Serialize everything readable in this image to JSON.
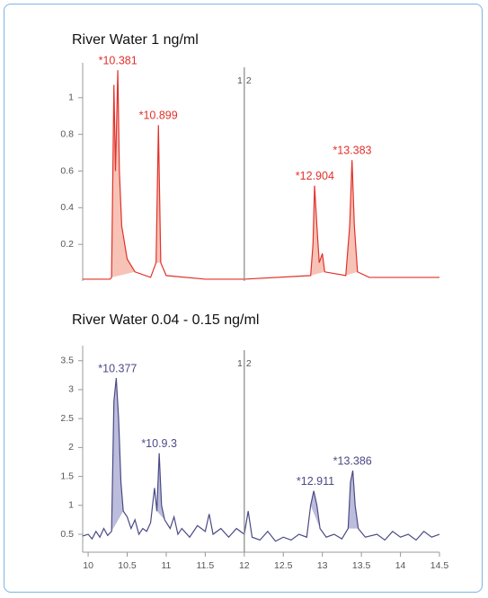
{
  "chart_data": [
    {
      "type": "line",
      "title": "River Water   1 ng/ml",
      "xlim": [
        9.93,
        14.5
      ],
      "ylim": [
        0,
        1.19
      ],
      "yticks": [
        0.2,
        0.4,
        0.6,
        0.8,
        1
      ],
      "divider": 12,
      "divider_labels": [
        "1",
        "2"
      ],
      "series": [
        {
          "color": "#e2312b",
          "fill": "#f6c3b6",
          "x": [
            9.93,
            10.28,
            10.3,
            10.33,
            10.35,
            10.38,
            10.4,
            10.43,
            10.5,
            10.6,
            10.8,
            10.87,
            10.9,
            10.93,
            11.0,
            11.5,
            12.0,
            12.85,
            12.88,
            12.9,
            12.93,
            12.96,
            13.0,
            13.03,
            13.3,
            13.35,
            13.38,
            13.41,
            13.45,
            13.6,
            14.5
          ],
          "values": [
            0.01,
            0.01,
            0.02,
            1.07,
            0.6,
            1.15,
            0.6,
            0.3,
            0.12,
            0.05,
            0.02,
            0.1,
            0.85,
            0.1,
            0.03,
            0.01,
            0.01,
            0.03,
            0.2,
            0.52,
            0.3,
            0.1,
            0.15,
            0.05,
            0.03,
            0.3,
            0.66,
            0.3,
            0.05,
            0.02,
            0.02
          ]
        }
      ],
      "shade": [
        [
          10.3,
          10.6
        ],
        [
          10.87,
          10.93
        ],
        [
          12.85,
          13.03
        ],
        [
          13.3,
          13.45
        ]
      ],
      "annotations": [
        {
          "text": "*10.381",
          "x": 10.381
        },
        {
          "text": "*10.899",
          "x": 10.899
        },
        {
          "text": "*12.904",
          "x": 12.904
        },
        {
          "text": "*13.383",
          "x": 13.383
        }
      ]
    },
    {
      "type": "line",
      "title": "River Water   0.04 - 0.15 ng/ml",
      "xlim": [
        9.93,
        14.5
      ],
      "ylim": [
        0.19,
        3.76
      ],
      "yticks": [
        0.5,
        1,
        1.5,
        2,
        2.5,
        3,
        3.5
      ],
      "xticks": [
        10,
        10.5,
        11,
        11.5,
        12,
        12.5,
        13,
        13.5,
        14,
        14.5
      ],
      "divider": 12,
      "divider_labels": [
        "1",
        "2"
      ],
      "series": [
        {
          "color": "#4b4a86",
          "fill": "#bcbcdc",
          "x": [
            9.93,
            10.0,
            10.05,
            10.1,
            10.15,
            10.2,
            10.25,
            10.3,
            10.33,
            10.36,
            10.39,
            10.42,
            10.45,
            10.5,
            10.55,
            10.6,
            10.65,
            10.7,
            10.75,
            10.8,
            10.85,
            10.88,
            10.91,
            10.94,
            10.98,
            11.05,
            11.1,
            11.15,
            11.2,
            11.3,
            11.4,
            11.5,
            11.55,
            11.6,
            11.7,
            11.8,
            11.9,
            12.0,
            12.05,
            12.1,
            12.2,
            12.3,
            12.4,
            12.5,
            12.6,
            12.7,
            12.8,
            12.85,
            12.89,
            12.93,
            12.97,
            13.05,
            13.15,
            13.25,
            13.33,
            13.36,
            13.39,
            13.42,
            13.46,
            13.55,
            13.7,
            13.8,
            13.9,
            14.0,
            14.1,
            14.2,
            14.3,
            14.4,
            14.5
          ],
          "values": [
            0.47,
            0.5,
            0.42,
            0.55,
            0.45,
            0.6,
            0.48,
            0.55,
            2.8,
            3.2,
            2.5,
            1.4,
            0.9,
            0.8,
            0.6,
            0.75,
            0.5,
            0.6,
            0.55,
            0.7,
            1.3,
            0.9,
            1.9,
            1.0,
            0.75,
            0.6,
            0.8,
            0.5,
            0.6,
            0.45,
            0.65,
            0.55,
            0.85,
            0.5,
            0.6,
            0.45,
            0.6,
            0.5,
            0.9,
            0.45,
            0.4,
            0.55,
            0.38,
            0.45,
            0.4,
            0.5,
            0.45,
            1.0,
            1.25,
            1.0,
            0.6,
            0.45,
            0.5,
            0.42,
            0.6,
            1.4,
            1.6,
            1.0,
            0.6,
            0.45,
            0.5,
            0.4,
            0.55,
            0.45,
            0.5,
            0.4,
            0.55,
            0.45,
            0.5
          ]
        }
      ],
      "shade": [
        [
          10.3,
          10.45
        ],
        [
          10.88,
          10.98
        ],
        [
          12.85,
          12.97
        ],
        [
          13.33,
          13.46
        ]
      ],
      "annotations": [
        {
          "text": "*10.377",
          "x": 10.377
        },
        {
          "text": "*10.9.3",
          "x": 10.91
        },
        {
          "text": "*12.911",
          "x": 12.911
        },
        {
          "text": "*13.386",
          "x": 13.386
        }
      ]
    }
  ]
}
